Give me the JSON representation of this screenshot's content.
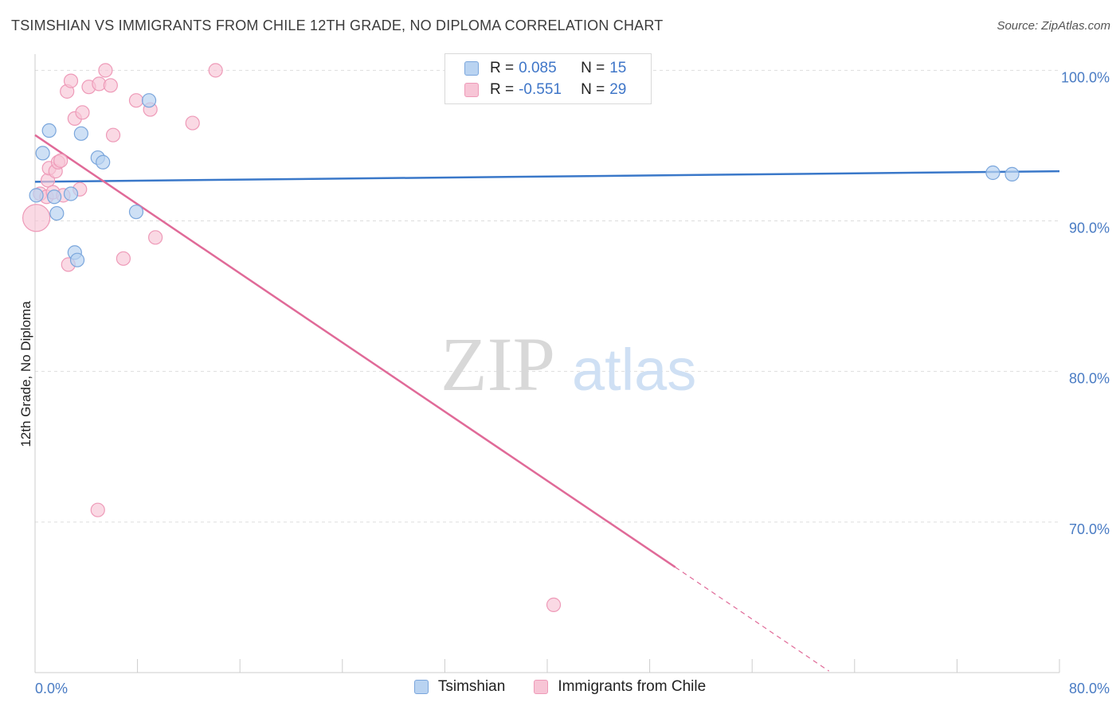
{
  "title": "TSIMSHIAN VS IMMIGRANTS FROM CHILE 12TH GRADE, NO DIPLOMA CORRELATION CHART",
  "source": "Source: ZipAtlas.com",
  "watermark": {
    "zip": "ZIP",
    "atlas": "atlas"
  },
  "colors": {
    "blue": "#3a78c9",
    "blue_fill": "#b9d3f1",
    "blue_stroke": "#7aa6dc",
    "pink": "#e06a98",
    "pink_fill": "#f7c5d6",
    "pink_stroke": "#ee9ab8",
    "grid": "#dddddd",
    "tick": "#4a7cc4"
  },
  "legend": {
    "r_label": "R =",
    "n_label": "N =",
    "series": [
      {
        "name": "Tsimshian",
        "r": "0.085",
        "n": "15"
      },
      {
        "name": "Immigrants from Chile",
        "r": "-0.551",
        "n": "29"
      }
    ]
  },
  "chart_data": {
    "type": "scatter",
    "title": "TSIMSHIAN VS IMMIGRANTS FROM CHILE 12TH GRADE, NO DIPLOMA CORRELATION CHART",
    "xlabel": "",
    "ylabel": "12th Grade, No Diploma",
    "xlim": [
      0.0,
      80.0
    ],
    "ylim": [
      60.0,
      101.5
    ],
    "x_tick_labels": [
      "0.0%",
      "80.0%"
    ],
    "y_ticks": [
      70,
      80,
      90,
      100
    ],
    "y_tick_labels": [
      "70.0%",
      "80.0%",
      "90.0%",
      "100.0%"
    ],
    "series": [
      {
        "name": "Tsimshian",
        "r": 0.085,
        "n": 15,
        "points": [
          [
            0.1,
            91.7
          ],
          [
            1.1,
            96.0
          ],
          [
            0.6,
            94.5
          ],
          [
            1.5,
            91.6
          ],
          [
            1.7,
            90.5
          ],
          [
            2.8,
            91.8
          ],
          [
            3.1,
            87.9
          ],
          [
            3.3,
            87.4
          ],
          [
            3.6,
            95.8
          ],
          [
            4.9,
            94.2
          ],
          [
            5.3,
            93.9
          ],
          [
            7.9,
            90.6
          ],
          [
            8.9,
            98.0
          ],
          [
            74.8,
            93.2
          ],
          [
            76.3,
            93.1
          ]
        ],
        "trend": {
          "x0": 0.0,
          "y0": 92.6,
          "x1": 80.0,
          "y1": 93.3
        }
      },
      {
        "name": "Immigrants from Chile",
        "r": -0.551,
        "n": 29,
        "points": [
          [
            0.1,
            90.2
          ],
          [
            0.4,
            91.8
          ],
          [
            0.9,
            91.6
          ],
          [
            1.0,
            92.7
          ],
          [
            1.1,
            93.5
          ],
          [
            1.4,
            91.9
          ],
          [
            1.6,
            93.3
          ],
          [
            1.8,
            93.9
          ],
          [
            2.0,
            94.0
          ],
          [
            2.2,
            91.7
          ],
          [
            2.5,
            98.6
          ],
          [
            2.6,
            87.1
          ],
          [
            2.8,
            99.3
          ],
          [
            3.1,
            96.8
          ],
          [
            3.5,
            92.1
          ],
          [
            3.7,
            97.2
          ],
          [
            4.2,
            98.9
          ],
          [
            5.0,
            99.1
          ],
          [
            5.5,
            100.0
          ],
          [
            5.9,
            99.0
          ],
          [
            6.1,
            95.7
          ],
          [
            4.9,
            70.8
          ],
          [
            6.9,
            87.5
          ],
          [
            7.9,
            98.0
          ],
          [
            9.4,
            88.9
          ],
          [
            12.3,
            96.5
          ],
          [
            14.1,
            100.0
          ],
          [
            40.5,
            64.5
          ],
          [
            9.0,
            97.4
          ]
        ],
        "trend": {
          "x0": 0.0,
          "y0": 95.7,
          "x1": 50.0,
          "y1": 67.0
        },
        "trend_dashed": {
          "x0": 50.0,
          "y0": 67.0,
          "x1": 62.0,
          "y1": 60.1
        }
      }
    ]
  }
}
